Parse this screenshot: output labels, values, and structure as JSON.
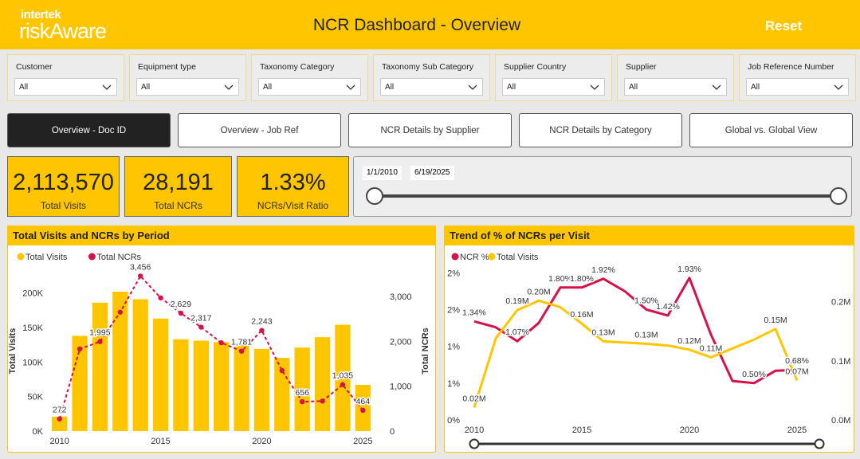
{
  "header": {
    "logo_top": "intertek",
    "logo_bottom": "riskAware",
    "title": "NCR Dashboard - Overview",
    "reset": "Reset"
  },
  "filters": [
    {
      "label": "Customer",
      "value": "All"
    },
    {
      "label": "Equipment type",
      "value": "All"
    },
    {
      "label": "Taxonomy Category",
      "value": "All"
    },
    {
      "label": "Taxonomy Sub Category",
      "value": "All"
    },
    {
      "label": "Supplier Country",
      "value": "All"
    },
    {
      "label": "Supplier",
      "value": "All"
    },
    {
      "label": "Job Reference Number",
      "value": "All"
    }
  ],
  "tabs": [
    "Overview - Doc ID",
    "Overview - Job Ref",
    "NCR Details by Supplier",
    "NCR Details by Category",
    "Global vs. Global View"
  ],
  "kpis": [
    {
      "value": "2,113,570",
      "label": "Total Visits"
    },
    {
      "value": "28,191",
      "label": "Total NCRs"
    },
    {
      "value": "1.33%",
      "label": "NCRs/Visit Ratio"
    }
  ],
  "date_range": {
    "start": "1/1/2010",
    "end": "6/19/2025"
  },
  "chart_data": [
    {
      "type": "combo",
      "title": "Total Visits and NCRs by Period",
      "x": [
        2010,
        2011,
        2012,
        2013,
        2014,
        2015,
        2016,
        2017,
        2018,
        2019,
        2020,
        2021,
        2022,
        2023,
        2024,
        2025
      ],
      "xlim": [
        2009.5,
        2025.5
      ],
      "xticks": [
        2010,
        2015,
        2020,
        2025
      ],
      "ylabel": "Total Visits",
      "y2label": "Total NCRs",
      "ylim": [
        0,
        232000
      ],
      "yticks": [
        {
          "value": 0,
          "label": "0K"
        },
        {
          "value": 50000,
          "label": "50K"
        },
        {
          "value": 100000,
          "label": "100K"
        },
        {
          "value": 150000,
          "label": "150K"
        },
        {
          "value": 200000,
          "label": "200K"
        }
      ],
      "y2lim": [
        0,
        3570
      ],
      "y2ticks": [
        0,
        {
          "value": 1000,
          "label": "1,000"
        },
        {
          "value": 2000,
          "label": "2,000"
        },
        {
          "value": 3000,
          "label": "3,000"
        }
      ],
      "series": [
        {
          "name": "Total Visits",
          "color": "#FFC600",
          "type": "bar",
          "values": [
            21000,
            138000,
            186000,
            202000,
            191000,
            163000,
            133000,
            131000,
            129000,
            126000,
            119000,
            106000,
            121000,
            136000,
            154000,
            67000
          ]
        },
        {
          "name": "Total NCRs",
          "color": "#D6124A",
          "type": "line",
          "dashed": true,
          "axis": "y2",
          "values": [
            272,
            1830,
            1995,
            2650,
            3456,
            2970,
            2629,
            2317,
            1970,
            1781,
            2243,
            1350,
            656,
            670,
            1035,
            464
          ],
          "value_labels": [
            "272",
            null,
            "1,995",
            null,
            "3,456",
            null,
            "2,629",
            "2,317",
            null,
            "1,781",
            "2,243",
            null,
            "656",
            null,
            "1,035",
            "464"
          ]
        }
      ]
    },
    {
      "type": "line",
      "title": "Trend of % of NCRs per Visit",
      "x": [
        2010,
        2011,
        2012,
        2013,
        2014,
        2015,
        2016,
        2017,
        2018,
        2019,
        2020,
        2021,
        2022,
        2023,
        2024,
        2025
      ],
      "xlim": [
        2010,
        2025
      ],
      "xticks": [
        2010,
        2015,
        2020,
        2025
      ],
      "ylim": [
        0,
        2.08
      ],
      "yticks": [
        {
          "value": 0,
          "label": "0%"
        },
        {
          "value": 0.5,
          "label": "1%"
        },
        {
          "value": 1,
          "label": "1%"
        },
        {
          "value": 1.5,
          "label": "2%"
        },
        {
          "value": 2,
          "label": "2%"
        }
      ],
      "y2lim": [
        0,
        259000
      ],
      "y2ticks": [
        {
          "value": 0,
          "label": "0.0M"
        },
        {
          "value": 100000,
          "label": "0.1M"
        },
        {
          "value": 200000,
          "label": "0.2M"
        }
      ],
      "series": [
        {
          "name": "NCR %",
          "color": "#D6124A",
          "values": [
            1.34,
            1.26,
            1.07,
            1.32,
            1.8,
            1.8,
            1.92,
            1.75,
            1.5,
            1.42,
            1.93,
            1.16,
            0.53,
            0.5,
            0.67,
            0.68
          ],
          "value_labels": [
            "1.34%",
            null,
            "1.07%",
            null,
            "1.80%",
            "1.80%",
            "1.92%",
            null,
            "1.50%",
            "1.42%",
            "1.93%",
            null,
            null,
            "0.50%",
            null,
            "0.68%"
          ]
        },
        {
          "name": "Total Visits",
          "color": "#FFC600",
          "axis": "y2",
          "values": [
            21000,
            138000,
            186000,
            202000,
            191000,
            163000,
            133000,
            131000,
            129000,
            126000,
            119000,
            106000,
            121000,
            136000,
            154000,
            67000
          ],
          "value_labels": [
            "0.02M",
            null,
            "0.19M",
            "0.20M",
            null,
            "0.16M",
            "0.13M",
            null,
            "0.13M",
            null,
            "0.12M",
            "0.11M",
            null,
            null,
            "0.15M",
            "0.07M"
          ]
        }
      ]
    }
  ]
}
